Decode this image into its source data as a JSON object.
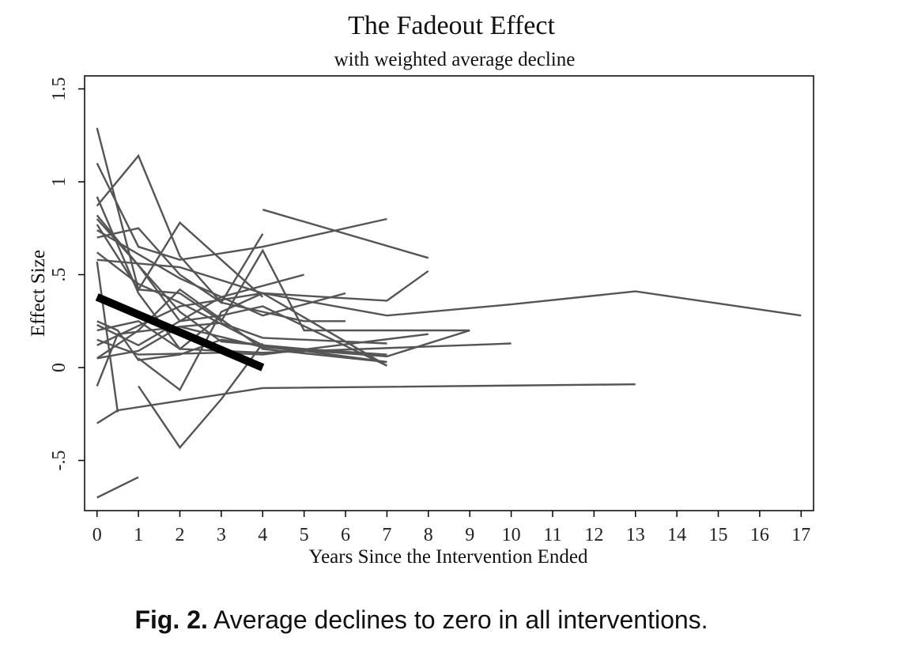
{
  "chart_data": {
    "type": "line",
    "title": "The Fadeout Effect",
    "subtitle": "with weighted average decline",
    "xlabel": "Years Since the Intervention Ended",
    "ylabel": "Effect Size",
    "xlim": [
      -0.3,
      17.3
    ],
    "ylim": [
      -0.77,
      1.57
    ],
    "x_ticks": [
      0,
      1,
      2,
      3,
      4,
      5,
      6,
      7,
      8,
      9,
      10,
      11,
      12,
      13,
      14,
      15,
      16,
      17
    ],
    "x_tick_labels": [
      "0",
      "1",
      "2",
      "3",
      "4",
      "5",
      "6",
      "7",
      "8",
      "9",
      "10",
      "11",
      "12",
      "13",
      "14",
      "15",
      "16",
      "17"
    ],
    "y_ticks": [
      -0.5,
      0,
      0.5,
      1,
      1.5
    ],
    "y_tick_labels": [
      "-.5",
      "0",
      ".5",
      "1",
      "1.5"
    ],
    "grid": false,
    "legend": "none",
    "series": [
      {
        "x": [
          0,
          0.5,
          4,
          13
        ],
        "y": [
          -0.3,
          -0.23,
          -0.11,
          -0.09
        ]
      },
      {
        "x": [
          0,
          1
        ],
        "y": [
          -0.7,
          -0.59
        ]
      },
      {
        "x": [
          1,
          2,
          3,
          4
        ],
        "y": [
          -0.1,
          -0.43,
          -0.17,
          0.13
        ]
      },
      {
        "x": [
          0,
          2,
          4,
          7,
          10,
          13,
          17
        ],
        "y": [
          0.12,
          0.33,
          0.4,
          0.28,
          0.34,
          0.41,
          0.28
        ]
      },
      {
        "x": [
          4,
          8
        ],
        "y": [
          0.85,
          0.59
        ]
      },
      {
        "x": [
          0,
          1,
          2,
          3,
          4,
          5,
          9
        ],
        "y": [
          0.77,
          0.42,
          0.4,
          0.25,
          0.63,
          0.2,
          0.2
        ]
      },
      {
        "x": [
          0,
          1,
          2,
          3,
          4
        ],
        "y": [
          0.87,
          1.14,
          0.6,
          0.35,
          0.72
        ]
      },
      {
        "x": [
          0,
          1,
          2,
          4
        ],
        "y": [
          1.29,
          0.42,
          0.78,
          0.38
        ]
      },
      {
        "x": [
          0,
          1,
          2,
          3,
          4,
          5,
          6
        ],
        "y": [
          0.7,
          0.75,
          0.5,
          0.35,
          0.3,
          0.25,
          0.25
        ]
      },
      {
        "x": [
          0,
          1,
          2,
          4,
          7
        ],
        "y": [
          1.1,
          0.65,
          0.58,
          0.65,
          0.8
        ]
      },
      {
        "x": [
          0,
          0.5,
          1,
          2,
          3,
          4,
          7
        ],
        "y": [
          0.25,
          0.2,
          0.04,
          0.07,
          0.15,
          0.12,
          0.03
        ]
      },
      {
        "x": [
          0,
          1,
          3,
          5
        ],
        "y": [
          0.23,
          0.12,
          0.38,
          0.5
        ]
      },
      {
        "x": [
          0,
          2,
          4,
          7,
          8
        ],
        "y": [
          0.58,
          0.54,
          0.4,
          0.36,
          0.52
        ]
      },
      {
        "x": [
          0,
          0.5,
          2,
          4,
          7,
          9
        ],
        "y": [
          -0.1,
          0.18,
          0.22,
          0.11,
          0.06,
          0.2
        ]
      },
      {
        "x": [
          0,
          1,
          3,
          4,
          8
        ],
        "y": [
          0.15,
          0.07,
          0.08,
          0.07,
          0.18
        ]
      },
      {
        "x": [
          0,
          1,
          2,
          3,
          4,
          7
        ],
        "y": [
          0.05,
          0.09,
          0.22,
          0.24,
          0.16,
          0.13
        ]
      },
      {
        "x": [
          0,
          0.5
        ],
        "y": [
          0.57,
          -0.24
        ]
      },
      {
        "x": [
          0,
          1,
          2,
          4,
          10
        ],
        "y": [
          0.2,
          0.25,
          0.1,
          0.08,
          0.13
        ]
      },
      {
        "x": [
          0,
          1,
          2,
          3
        ],
        "y": [
          0.82,
          0.55,
          0.25,
          0.28
        ]
      },
      {
        "x": [
          0,
          2,
          4,
          6
        ],
        "y": [
          0.74,
          0.48,
          0.28,
          0.4
        ]
      },
      {
        "x": [
          0,
          1,
          2,
          4,
          7
        ],
        "y": [
          0.05,
          0.2,
          0.42,
          0.1,
          0.03
        ]
      },
      {
        "x": [
          0,
          1,
          2,
          3,
          4,
          7
        ],
        "y": [
          0.92,
          0.4,
          0.1,
          0.28,
          0.33,
          0.01
        ]
      },
      {
        "x": [
          1,
          2,
          3,
          4,
          7
        ],
        "y": [
          0.05,
          -0.12,
          0.3,
          0.4,
          0.01
        ]
      },
      {
        "x": [
          0,
          1,
          2,
          4,
          5
        ],
        "y": [
          0.62,
          0.45,
          0.35,
          0.12,
          0.08
        ]
      },
      {
        "x": [
          0,
          2,
          3,
          5,
          7
        ],
        "y": [
          0.8,
          0.3,
          0.14,
          0.1,
          0.07
        ]
      }
    ],
    "average_decline": {
      "x": [
        0,
        4
      ],
      "y": [
        0.38,
        0.0
      ]
    }
  },
  "caption": {
    "label": "Fig. 2.",
    "text": "Average declines to zero in all interventions."
  }
}
